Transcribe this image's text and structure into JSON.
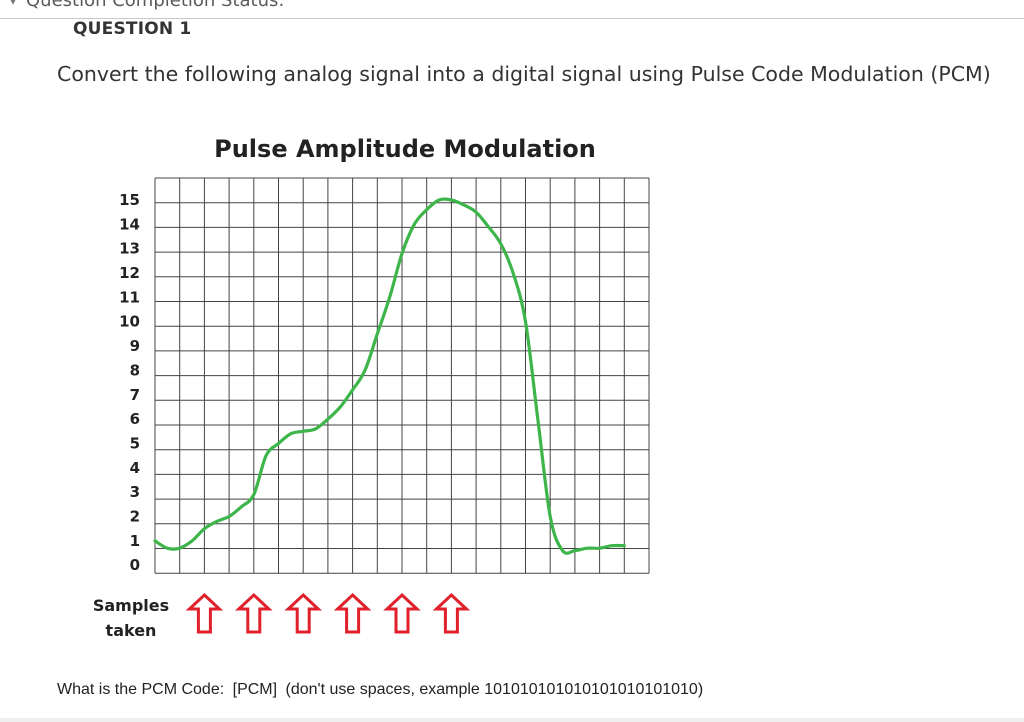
{
  "header": {
    "status_label": "Question Completion Status:"
  },
  "question": {
    "heading": "QUESTION 1",
    "prompt": "Convert the following analog signal into a digital signal using Pulse Code Modulation (PCM)"
  },
  "answer_line": {
    "label": "What is the PCM Code:",
    "field": "[PCM]",
    "hint": "(don't use spaces, example 101010101010101010101010)"
  },
  "chart_data": {
    "type": "line",
    "title": "Pulse Amplitude Modulation",
    "xlabel": "",
    "ylabel": "",
    "ylim": [
      0,
      15
    ],
    "y_ticks": [
      "0",
      "1",
      "2",
      "3",
      "4",
      "5",
      "6",
      "7",
      "8",
      "9",
      "10",
      "11",
      "12",
      "13",
      "14",
      "15"
    ],
    "grid": true,
    "series": [
      {
        "color": "#3db54a",
        "x": [
          0.0,
          0.5,
          1.0,
          1.5,
          2.0,
          2.5,
          3.0,
          3.5,
          4.0,
          4.5,
          5.0,
          5.5,
          6.0,
          6.5,
          7.0,
          7.5,
          8.0,
          8.5,
          9.0,
          9.5,
          10.0,
          10.5,
          11.0,
          11.5,
          12.0,
          12.5,
          13.0,
          13.5,
          14.0,
          14.5,
          15.0,
          15.5,
          16.0,
          16.5,
          17.0,
          17.5,
          18.0,
          18.5,
          19.0
        ],
        "values": [
          1.0,
          0.7,
          0.7,
          1.0,
          1.5,
          1.8,
          2.0,
          2.4,
          2.9,
          4.5,
          5.0,
          5.4,
          5.5,
          5.6,
          6.0,
          6.5,
          7.2,
          8.0,
          9.5,
          11.0,
          12.8,
          14.0,
          14.6,
          15.0,
          15.0,
          14.8,
          14.5,
          13.9,
          13.2,
          12.0,
          10.0,
          6.0,
          2.0,
          0.6,
          0.6,
          0.7,
          0.7,
          0.8,
          0.8
        ]
      }
    ],
    "samples_label": [
      "Samples",
      "taken"
    ],
    "sample_x": [
      2,
      4,
      6,
      8,
      10,
      12
    ],
    "sample_marker_color": "#e0202a"
  }
}
